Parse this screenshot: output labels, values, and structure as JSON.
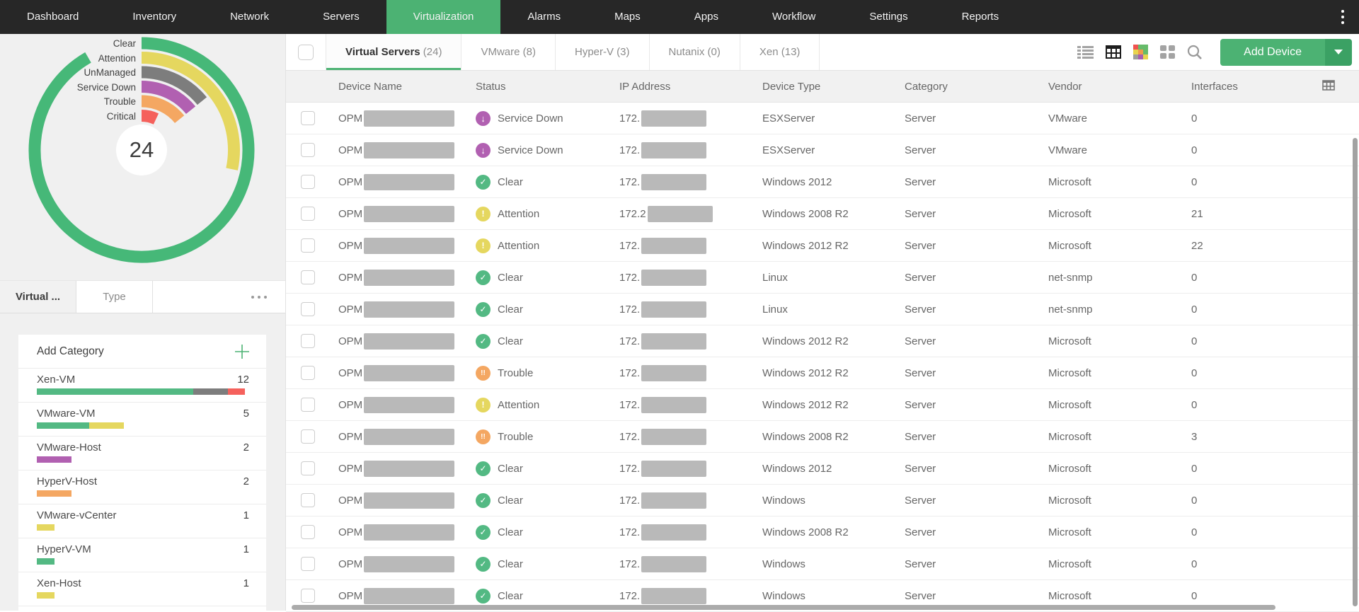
{
  "nav": {
    "items": [
      {
        "label": "Dashboard",
        "active": false
      },
      {
        "label": "Inventory",
        "active": false
      },
      {
        "label": "Network",
        "active": false
      },
      {
        "label": "Servers",
        "active": false
      },
      {
        "label": "Virtualization",
        "active": true
      },
      {
        "label": "Alarms",
        "active": false
      },
      {
        "label": "Maps",
        "active": false
      },
      {
        "label": "Apps",
        "active": false
      },
      {
        "label": "Workflow",
        "active": false
      },
      {
        "label": "Settings",
        "active": false
      },
      {
        "label": "Reports",
        "active": false
      }
    ],
    "more_icon": "kebab-menu-icon"
  },
  "colors": {
    "brand_green": "#4cb273",
    "donut_green": "#46b878",
    "statuses": {
      "clear": "#53b983",
      "attention": "#e5d75f",
      "unmanaged": "#7d7d7d",
      "service_down": "#b160b1",
      "trouble": "#f4a762",
      "critical": "#f5615c"
    }
  },
  "sidebar": {
    "donut": {
      "total": "24",
      "rings": [
        {
          "label": "Clear",
          "status": "clear",
          "count": 13,
          "sweep": 330
        },
        {
          "label": "Attention",
          "status": "attention",
          "count": 4,
          "sweep": 102
        },
        {
          "label": "UnManaged",
          "status": "unmanaged",
          "count": 2,
          "sweep": 51
        },
        {
          "label": "Service Down",
          "status": "service_down",
          "count": 2,
          "sweep": 51
        },
        {
          "label": "Trouble",
          "status": "trouble",
          "count": 2,
          "sweep": 51
        },
        {
          "label": "Critical",
          "status": "critical",
          "count": 1,
          "sweep": 25
        }
      ]
    },
    "tabs": [
      {
        "label": "Virtual ...",
        "active": true
      },
      {
        "label": "Type",
        "active": false
      }
    ],
    "category_panel": {
      "title": "Add Category",
      "add_icon": "plus-icon",
      "categories": [
        {
          "name": "Xen-VM",
          "count": "12",
          "segments": [
            {
              "status": "clear",
              "count": 9
            },
            {
              "status": "unmanaged",
              "count": 2
            },
            {
              "status": "critical",
              "count": 1
            }
          ]
        },
        {
          "name": "VMware-VM",
          "count": "5",
          "segments": [
            {
              "status": "clear",
              "count": 3
            },
            {
              "status": "attention",
              "count": 2
            }
          ]
        },
        {
          "name": "VMware-Host",
          "count": "2",
          "segments": [
            {
              "status": "service_down",
              "count": 2
            }
          ]
        },
        {
          "name": "HyperV-Host",
          "count": "2",
          "segments": [
            {
              "status": "trouble",
              "count": 2
            }
          ]
        },
        {
          "name": "VMware-vCenter",
          "count": "1",
          "segments": [
            {
              "status": "attention",
              "count": 1
            }
          ]
        },
        {
          "name": "HyperV-VM",
          "count": "1",
          "segments": [
            {
              "status": "clear",
              "count": 1
            }
          ]
        },
        {
          "name": "Xen-Host",
          "count": "1",
          "segments": [
            {
              "status": "attention",
              "count": 1
            }
          ]
        }
      ]
    }
  },
  "toolbar": {
    "tabs": [
      {
        "label": "Virtual Servers",
        "count": "(24)",
        "active": true
      },
      {
        "label": "VMware",
        "count": "(8)",
        "active": false
      },
      {
        "label": "Hyper-V",
        "count": "(3)",
        "active": false
      },
      {
        "label": "Nutanix",
        "count": "(0)",
        "active": false
      },
      {
        "label": "Xen",
        "count": "(13)",
        "active": false
      }
    ],
    "view_icons": [
      "list-view-icon",
      "table-view-icon",
      "heatmap-view-icon",
      "tile-view-icon",
      "search-icon"
    ],
    "add_device_label": "Add Device"
  },
  "table": {
    "columns": [
      "Device Name",
      "Status",
      "IP Address",
      "Device Type",
      "Category",
      "Vendor",
      "Interfaces"
    ],
    "column_chooser_icon": "grid-columns-icon",
    "name_prefix": "OPM",
    "ip_prefix": "172.",
    "rows": [
      {
        "status": "Service Down",
        "status_key": "service_down",
        "device_type": "ESXServer",
        "category": "Server",
        "vendor": "VMware",
        "interfaces": "0"
      },
      {
        "status": "Service Down",
        "status_key": "service_down",
        "device_type": "ESXServer",
        "category": "Server",
        "vendor": "VMware",
        "interfaces": "0"
      },
      {
        "status": "Clear",
        "status_key": "clear",
        "device_type": "Windows 2012",
        "category": "Server",
        "vendor": "Microsoft",
        "interfaces": "0"
      },
      {
        "status": "Attention",
        "status_key": "attention",
        "ip_prefix": "172.2",
        "device_type": "Windows 2008 R2",
        "category": "Server",
        "vendor": "Microsoft",
        "interfaces": "21"
      },
      {
        "status": "Attention",
        "status_key": "attention",
        "device_type": "Windows 2012 R2",
        "category": "Server",
        "vendor": "Microsoft",
        "interfaces": "22"
      },
      {
        "status": "Clear",
        "status_key": "clear",
        "device_type": "Linux",
        "category": "Server",
        "vendor": "net-snmp",
        "interfaces": "0"
      },
      {
        "status": "Clear",
        "status_key": "clear",
        "device_type": "Linux",
        "category": "Server",
        "vendor": "net-snmp",
        "interfaces": "0"
      },
      {
        "status": "Clear",
        "status_key": "clear",
        "device_type": "Windows 2012 R2",
        "category": "Server",
        "vendor": "Microsoft",
        "interfaces": "0"
      },
      {
        "status": "Trouble",
        "status_key": "trouble",
        "device_type": "Windows 2012 R2",
        "category": "Server",
        "vendor": "Microsoft",
        "interfaces": "0"
      },
      {
        "status": "Attention",
        "status_key": "attention",
        "device_type": "Windows 2012 R2",
        "category": "Server",
        "vendor": "Microsoft",
        "interfaces": "0"
      },
      {
        "status": "Trouble",
        "status_key": "trouble",
        "device_type": "Windows 2008 R2",
        "category": "Server",
        "vendor": "Microsoft",
        "interfaces": "3"
      },
      {
        "status": "Clear",
        "status_key": "clear",
        "device_type": "Windows 2012",
        "category": "Server",
        "vendor": "Microsoft",
        "interfaces": "0"
      },
      {
        "status": "Clear",
        "status_key": "clear",
        "device_type": "Windows",
        "category": "Server",
        "vendor": "Microsoft",
        "interfaces": "0"
      },
      {
        "status": "Clear",
        "status_key": "clear",
        "device_type": "Windows 2008 R2",
        "category": "Server",
        "vendor": "Microsoft",
        "interfaces": "0"
      },
      {
        "status": "Clear",
        "status_key": "clear",
        "device_type": "Windows",
        "category": "Server",
        "vendor": "Microsoft",
        "interfaces": "0"
      },
      {
        "status": "Clear",
        "status_key": "clear",
        "device_type": "Windows",
        "category": "Server",
        "vendor": "Microsoft",
        "interfaces": "0"
      }
    ]
  }
}
